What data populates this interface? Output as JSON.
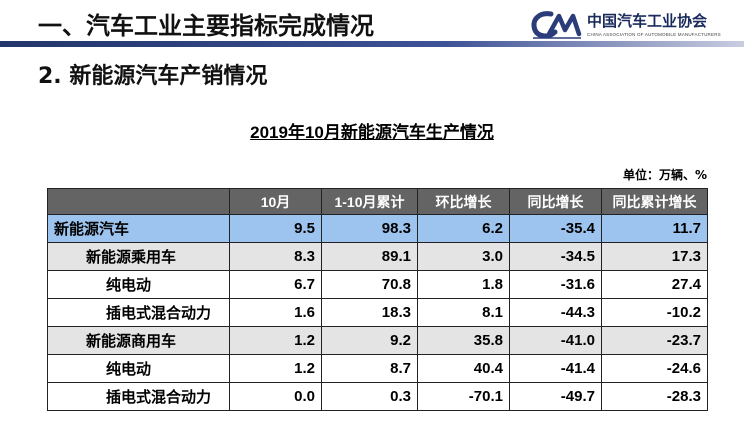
{
  "header": {
    "title": "一、汽车工业主要指标完成情况",
    "logo_name": "中国汽车工业协会",
    "logo_sub": "CHINA ASSOCIATION OF AUTOMOBILE MANUFACTURERS",
    "accent_color": "#2a3c7a"
  },
  "subheading": "2. 新能源汽车产销情况",
  "table": {
    "title": "2019年10月新能源汽车生产情况",
    "unit": "单位：万辆、%",
    "columns": [
      "",
      "10月",
      "1-10月累计",
      "环比增长",
      "同比增长",
      "同比累计增长"
    ],
    "rows": [
      {
        "label": "新能源汽车",
        "values": [
          "9.5",
          "98.3",
          "6.2",
          "-35.4",
          "11.7"
        ]
      },
      {
        "label": "新能源乘用车",
        "values": [
          "8.3",
          "89.1",
          "3.0",
          "-34.5",
          "17.3"
        ]
      },
      {
        "label": "纯电动",
        "values": [
          "6.7",
          "70.8",
          "1.8",
          "-31.6",
          "27.4"
        ]
      },
      {
        "label": "插电式混合动力",
        "values": [
          "1.6",
          "18.3",
          "8.1",
          "-44.3",
          "-10.2"
        ]
      },
      {
        "label": "新能源商用车",
        "values": [
          "1.2",
          "9.2",
          "35.8",
          "-41.0",
          "-23.7"
        ]
      },
      {
        "label": "纯电动",
        "values": [
          "1.2",
          "8.7",
          "40.4",
          "-41.4",
          "-24.6"
        ]
      },
      {
        "label": "插电式混合动力",
        "values": [
          "0.0",
          "0.3",
          "-70.1",
          "-49.7",
          "-28.3"
        ]
      }
    ]
  }
}
